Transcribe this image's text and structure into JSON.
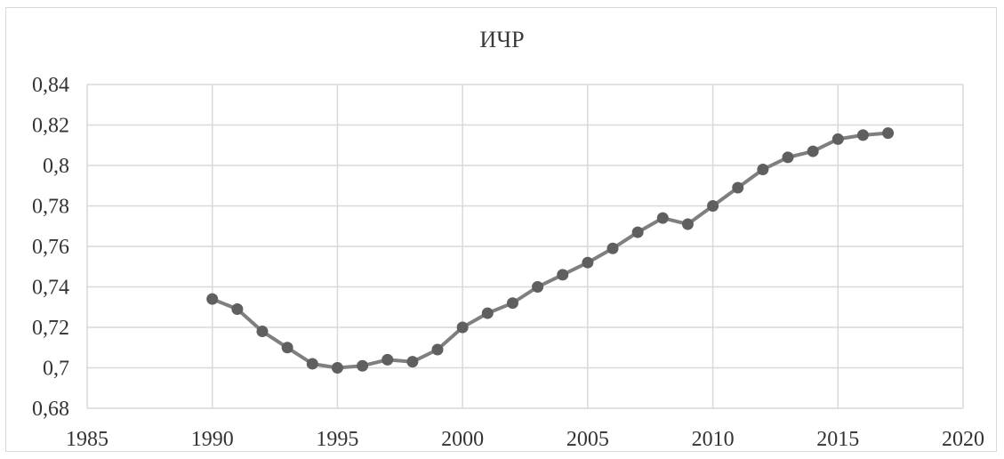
{
  "chart_data": {
    "type": "line",
    "title": "ИЧР",
    "xlabel": "",
    "ylabel": "",
    "xlim": [
      1985,
      2020
    ],
    "ylim": [
      0.68,
      0.84
    ],
    "x_ticks": [
      1985,
      1990,
      1995,
      2000,
      2005,
      2010,
      2015,
      2020
    ],
    "x_tick_labels": [
      "1985",
      "1990",
      "1995",
      "2000",
      "2005",
      "2010",
      "2015",
      "2020"
    ],
    "y_ticks": [
      0.68,
      0.7,
      0.72,
      0.74,
      0.76,
      0.78,
      0.8,
      0.82,
      0.84
    ],
    "y_tick_labels": [
      "0,68",
      "0,7",
      "0,72",
      "0,74",
      "0,76",
      "0,78",
      "0,8",
      "0,82",
      "0,84"
    ],
    "grid": true,
    "legend": "none",
    "line_color": "#7f7f7f",
    "marker_color": "#5f5f5f",
    "grid_color": "#d9d9d9",
    "series": [
      {
        "x": [
          1990,
          1991,
          1992,
          1993,
          1994,
          1995,
          1996,
          1997,
          1998,
          1999,
          2000,
          2001,
          2002,
          2003,
          2004,
          2005,
          2006,
          2007,
          2008,
          2009,
          2010,
          2011,
          2012,
          2013,
          2014,
          2015,
          2016,
          2017
        ],
        "values": [
          0.734,
          0.729,
          0.718,
          0.71,
          0.702,
          0.7,
          0.701,
          0.704,
          0.703,
          0.709,
          0.72,
          0.727,
          0.732,
          0.74,
          0.746,
          0.752,
          0.759,
          0.767,
          0.774,
          0.771,
          0.78,
          0.789,
          0.798,
          0.804,
          0.807,
          0.813,
          0.815,
          0.816
        ]
      }
    ]
  }
}
